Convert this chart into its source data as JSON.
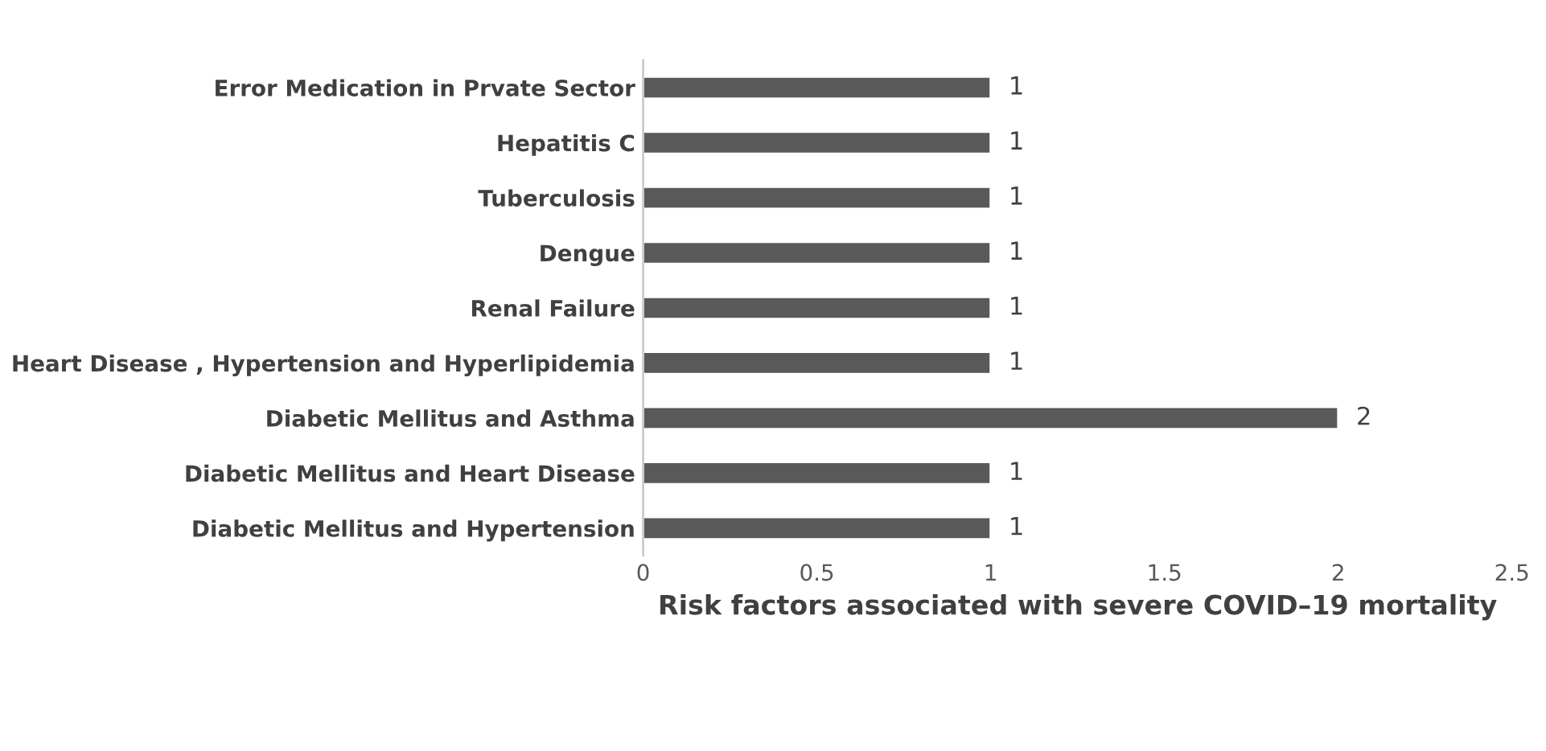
{
  "chart_data": {
    "type": "bar",
    "orientation": "horizontal",
    "xlabel": "Risk factors associated with severe COVID–19 mortality",
    "categories": [
      "Error Medication in Prvate Sector",
      "Hepatitis C",
      "Tuberculosis",
      "Dengue",
      "Renal Failure",
      "Heart Disease , Hypertension and Hyperlipidemia",
      "Diabetic Mellitus and Asthma",
      "Diabetic Mellitus and Heart Disease",
      "Diabetic Mellitus and Hypertension"
    ],
    "values": [
      1,
      1,
      1,
      1,
      1,
      1,
      2,
      1,
      1
    ],
    "color": "#595959",
    "xlim": [
      0,
      2.5
    ],
    "xticks": [
      0,
      0.5,
      1,
      1.5,
      2,
      2.5
    ],
    "grid": false,
    "data_labels": true
  }
}
